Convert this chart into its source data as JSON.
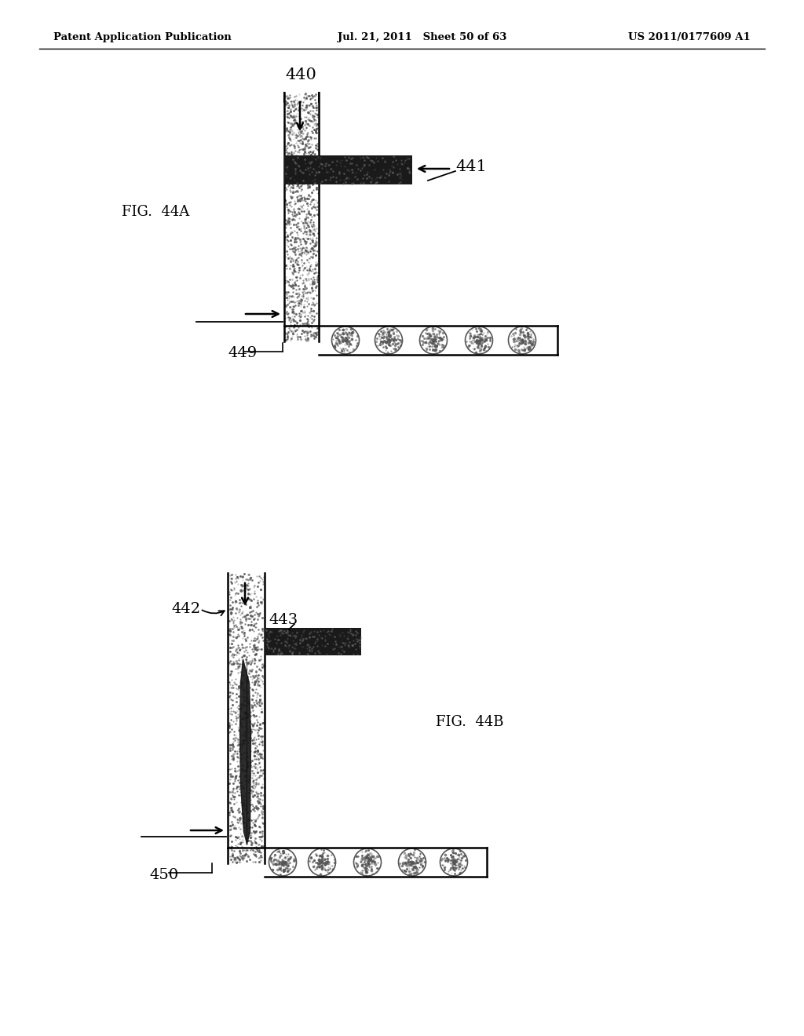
{
  "header_left": "Patent Application Publication",
  "header_mid": "Jul. 21, 2011   Sheet 50 of 63",
  "header_right": "US 2011/0177609 A1",
  "fig_a_label": "FIG.  44A",
  "fig_b_label": "FIG.  44B",
  "label_440": "440",
  "label_441": "441",
  "label_449": "449",
  "label_442": "442",
  "label_443": "443",
  "label_450": "450",
  "bg_color": "#ffffff",
  "tube_fill": "#e8e4dc",
  "tube_border": "#000000",
  "plug_dark": "#2a2a2a",
  "stipple_color": "#707060"
}
